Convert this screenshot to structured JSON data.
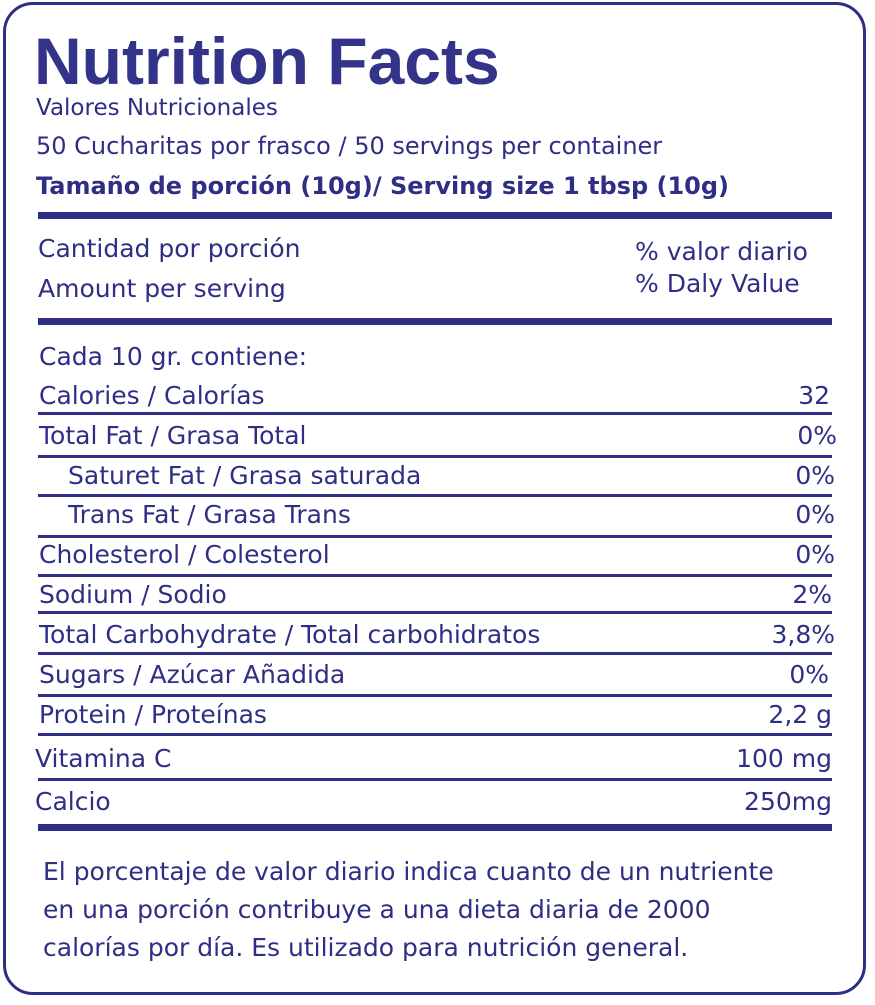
{
  "header": {
    "title": "Nutrition Facts",
    "subtitle_es": "Valores Nutricionales",
    "servings": "50 Cucharitas por frasco / 50 servings per container",
    "serving_size": "Tamaño de porción (10g)/ Serving size 1 tbsp (10g)"
  },
  "amount_header": {
    "left_line1": "Cantidad por porción",
    "left_line2": "Amount per serving",
    "right_line1": "% valor diario",
    "right_line2": "% Daly Value"
  },
  "intro": "Cada 10 gr. contiene:",
  "nutrients": [
    {
      "label": "Calories / Calorías",
      "value": "32"
    },
    {
      "label": "Total Fat / Grasa Total",
      "value": "0%"
    },
    {
      "label": "Saturet Fat / Grasa saturada",
      "value": "0%"
    },
    {
      "label": "Trans Fat / Grasa Trans",
      "value": "0%"
    },
    {
      "label": "Cholesterol / Colesterol",
      "value": "0%"
    },
    {
      "label": "Sodium / Sodio",
      "value": "2%"
    },
    {
      "label": "Total Carbohydrate / Total carbohidratos",
      "value": "3,8%"
    },
    {
      "label": "Sugars / Azúcar Añadida",
      "value": "0%"
    },
    {
      "label": "Protein / Proteínas",
      "value": "2,2 g"
    },
    {
      "label": "Vitamina C",
      "value": "100 mg"
    },
    {
      "label": "Calcio",
      "value": "250mg"
    }
  ],
  "footnote": {
    "line1": "El porcentaje de valor diario indica cuanto de un nutriente",
    "line2": "en una porción contribuye a una dieta diaria de 2000",
    "line3": "calorías por día. Es utilizado para nutrición general."
  },
  "colors": {
    "ink": "#2e2f84"
  }
}
